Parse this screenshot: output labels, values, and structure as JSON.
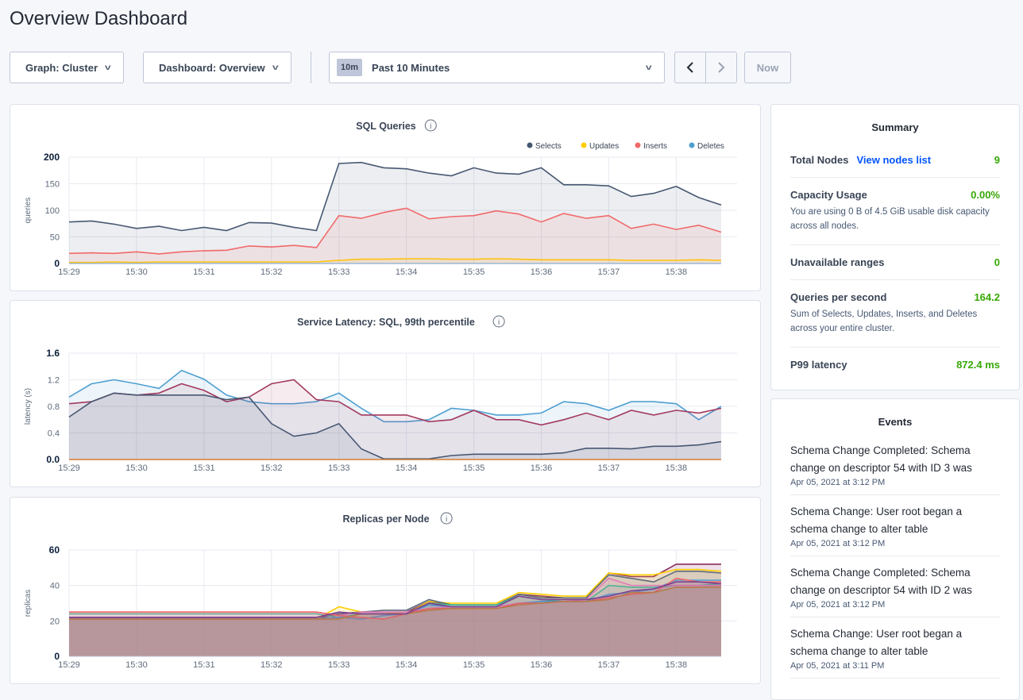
{
  "page_title": "Overview Dashboard",
  "controls": {
    "graph_select": "Graph: Cluster",
    "dashboard_select": "Dashboard: Overview",
    "time_badge": "10m",
    "time_select": "Past 10 Minutes",
    "now_button": "Now",
    "prev_icon": "chevron-left-icon",
    "next_icon": "chevron-right-icon"
  },
  "summary": {
    "title": "Summary",
    "total_nodes_label": "Total Nodes",
    "view_nodes_link": "View nodes list",
    "total_nodes_value": "9",
    "capacity_label": "Capacity Usage",
    "capacity_value": "0.00%",
    "capacity_desc": "You are using 0 B of 4.5 GiB usable disk capacity across all nodes.",
    "unavailable_label": "Unavailable ranges",
    "unavailable_value": "0",
    "qps_label": "Queries per second",
    "qps_value": "164.2",
    "qps_desc": "Sum of Selects, Updates, Inserts, and Deletes across your entire cluster.",
    "p99_label": "P99 latency",
    "p99_value": "872.4 ms"
  },
  "events": {
    "title": "Events",
    "items": [
      {
        "text": "Schema Change Completed: Schema change on descriptor 54 with ID 3 was",
        "time": "Apr 05, 2021 at 3:12 PM"
      },
      {
        "text": "Schema Change: User root began a schema change to alter table",
        "time": "Apr 05, 2021 at 3:12 PM"
      },
      {
        "text": "Schema Change Completed: Schema change on descriptor 54 with ID 2 was",
        "time": "Apr 05, 2021 at 3:12 PM"
      },
      {
        "text": "Schema Change: User root began a schema change to alter table",
        "time": "Apr 05, 2021 at 3:11 PM"
      }
    ]
  },
  "chart_data": [
    {
      "type": "area",
      "title": "SQL Queries",
      "ylabel": "queries",
      "ylim": [
        0,
        200
      ],
      "yticks": [
        "0",
        "50",
        "100",
        "150",
        "200"
      ],
      "xticks": [
        "15:29",
        "15:30",
        "15:31",
        "15:32",
        "15:33",
        "15:34",
        "15:35",
        "15:36",
        "15:37",
        "15:38"
      ],
      "x_interval": "20s",
      "x_start": "15:29:00",
      "x_end": "15:38:40",
      "grid": true,
      "legend": "top-right",
      "series": [
        {
          "name": "Selects",
          "color": "#475872",
          "values": [
            78,
            80,
            74,
            66,
            70,
            62,
            68,
            62,
            77,
            76,
            68,
            62,
            188,
            190,
            180,
            178,
            170,
            165,
            180,
            170,
            168,
            180,
            148,
            148,
            146,
            126,
            132,
            145,
            124,
            110
          ]
        },
        {
          "name": "Updates",
          "color": "#ffcd02",
          "values": [
            2,
            2,
            3,
            2,
            3,
            3,
            3,
            3,
            3,
            3,
            3,
            3,
            6,
            8,
            8,
            9,
            9,
            8,
            8,
            9,
            8,
            7,
            7,
            7,
            7,
            6,
            6,
            6,
            7,
            6
          ]
        },
        {
          "name": "Inserts",
          "color": "#f16969",
          "values": [
            19,
            20,
            19,
            22,
            18,
            22,
            24,
            25,
            33,
            31,
            34,
            30,
            90,
            85,
            96,
            104,
            84,
            88,
            90,
            99,
            93,
            78,
            94,
            85,
            90,
            66,
            74,
            64,
            72,
            59
          ]
        },
        {
          "name": "Deletes",
          "color": "#4e9fd1",
          "values": [
            0,
            0,
            0,
            0,
            0,
            0,
            0,
            0,
            0,
            0,
            0,
            0,
            0,
            0,
            0,
            0,
            0,
            0,
            0,
            0,
            0,
            0,
            0,
            0,
            0,
            0,
            0,
            0,
            0,
            0
          ]
        }
      ]
    },
    {
      "type": "area",
      "title": "Service Latency: SQL, 99th percentile",
      "ylabel": "latency (s)",
      "ylim": [
        0,
        1.6
      ],
      "yticks": [
        "0.0",
        "0.4",
        "0.8",
        "1.2",
        "1.6"
      ],
      "xticks": [
        "15:29",
        "15:30",
        "15:31",
        "15:32",
        "15:33",
        "15:34",
        "15:35",
        "15:36",
        "15:37",
        "15:38"
      ],
      "x_interval": "20s",
      "x_start": "15:29:00",
      "x_end": "15:38:40",
      "grid": true,
      "series": [
        {
          "color": "#4e9fd1",
          "values": [
            0.94,
            1.14,
            1.2,
            1.14,
            1.07,
            1.34,
            1.21,
            0.97,
            0.87,
            0.84,
            0.84,
            0.87,
            1.0,
            0.77,
            0.57,
            0.57,
            0.6,
            0.77,
            0.74,
            0.67,
            0.67,
            0.7,
            0.87,
            0.84,
            0.74,
            0.87,
            0.87,
            0.84,
            0.6,
            0.8
          ]
        },
        {
          "color": "#a33a5f",
          "values": [
            0.84,
            0.87,
            1.0,
            0.97,
            1.0,
            1.14,
            1.04,
            0.87,
            0.94,
            1.14,
            1.2,
            0.9,
            0.87,
            0.67,
            0.67,
            0.67,
            0.57,
            0.6,
            0.74,
            0.6,
            0.6,
            0.52,
            0.6,
            0.7,
            0.6,
            0.74,
            0.67,
            0.74,
            0.7,
            0.77
          ]
        },
        {
          "color": "#475872",
          "values": [
            0.64,
            0.87,
            1.0,
            0.97,
            0.97,
            0.97,
            0.97,
            0.9,
            0.94,
            0.54,
            0.35,
            0.4,
            0.54,
            0.16,
            0.01,
            0.01,
            0.01,
            0.06,
            0.08,
            0.08,
            0.08,
            0.08,
            0.1,
            0.17,
            0.17,
            0.16,
            0.2,
            0.2,
            0.22,
            0.27
          ]
        },
        {
          "color": "#d77d33",
          "values": [
            0,
            0,
            0,
            0,
            0,
            0,
            0,
            0,
            0,
            0,
            0,
            0,
            0,
            0,
            0,
            0,
            0,
            0,
            0,
            0,
            0,
            0,
            0,
            0,
            0,
            0,
            0,
            0,
            0,
            0
          ]
        }
      ]
    },
    {
      "type": "area",
      "title": "Replicas per Node",
      "ylabel": "replicas",
      "ylim": [
        0,
        60
      ],
      "yticks": [
        "0",
        "20",
        "40",
        "60"
      ],
      "xticks": [
        "15:29",
        "15:30",
        "15:31",
        "15:32",
        "15:33",
        "15:34",
        "15:35",
        "15:36",
        "15:37",
        "15:38"
      ],
      "x_interval": "20s",
      "x_start": "15:29:00",
      "x_end": "15:38:40",
      "grid": true,
      "series": [
        {
          "color": "#8a2d5e",
          "values": [
            22,
            22,
            22,
            22,
            22,
            22,
            22,
            22,
            22,
            22,
            22,
            22,
            24,
            25,
            25,
            25,
            31,
            29,
            29,
            29,
            35,
            34,
            33,
            33,
            47,
            45,
            45,
            52,
            52,
            52
          ]
        },
        {
          "color": "#ffcd02",
          "values": [
            21,
            21,
            21,
            21,
            21,
            21,
            21,
            21,
            21,
            21,
            21,
            21,
            28,
            25,
            25,
            24,
            31,
            30,
            30,
            30,
            36,
            35,
            34,
            34,
            47,
            46,
            46,
            49,
            49,
            48
          ]
        },
        {
          "color": "#5f6b7c",
          "values": [
            21,
            21,
            21,
            21,
            21,
            21,
            21,
            21,
            21,
            21,
            21,
            21,
            24,
            25,
            26,
            26,
            32,
            29,
            29,
            29,
            35,
            33,
            33,
            33,
            46,
            44,
            42,
            48,
            48,
            47
          ]
        },
        {
          "color": "#3dba93",
          "values": [
            24,
            24,
            24,
            24,
            24,
            24,
            24,
            24,
            24,
            24,
            24,
            24,
            22,
            24,
            24,
            24,
            30,
            29,
            29,
            29,
            34,
            32,
            31,
            31,
            40,
            39,
            39,
            40,
            40,
            41
          ]
        },
        {
          "color": "#4e9fd1",
          "values": [
            21,
            21,
            21,
            21,
            21,
            21,
            21,
            21,
            21,
            21,
            21,
            21,
            22,
            21,
            23,
            24,
            29,
            28,
            28,
            28,
            30,
            31,
            31,
            31,
            35,
            36,
            38,
            43,
            43,
            43
          ]
        },
        {
          "color": "#e07fb6",
          "values": [
            25,
            25,
            25,
            25,
            25,
            25,
            25,
            25,
            25,
            25,
            25,
            25,
            23,
            25,
            25,
            25,
            27,
            28,
            28,
            28,
            30,
            30,
            31,
            32,
            44,
            40,
            40,
            40,
            40,
            40
          ]
        },
        {
          "color": "#f16969",
          "values": [
            25,
            25,
            25,
            25,
            25,
            25,
            25,
            25,
            25,
            25,
            25,
            25,
            23,
            22,
            21,
            24,
            27,
            27,
            27,
            27,
            30,
            30,
            31,
            31,
            33,
            35,
            36,
            44,
            42,
            42
          ]
        },
        {
          "color": "#c28340",
          "values": [
            21,
            21,
            21,
            21,
            21,
            21,
            21,
            21,
            21,
            21,
            21,
            21,
            21,
            24,
            24,
            24,
            26,
            27,
            27,
            27,
            29,
            30,
            31,
            31,
            32,
            36,
            36,
            39,
            39,
            39
          ]
        },
        {
          "color": "#7e3f8f",
          "values": [
            22,
            22,
            22,
            22,
            22,
            22,
            22,
            22,
            22,
            22,
            22,
            22,
            25,
            24,
            24,
            24,
            30,
            28,
            28,
            28,
            34,
            32,
            32,
            32,
            34,
            37,
            38,
            42,
            42,
            41
          ]
        }
      ]
    }
  ]
}
